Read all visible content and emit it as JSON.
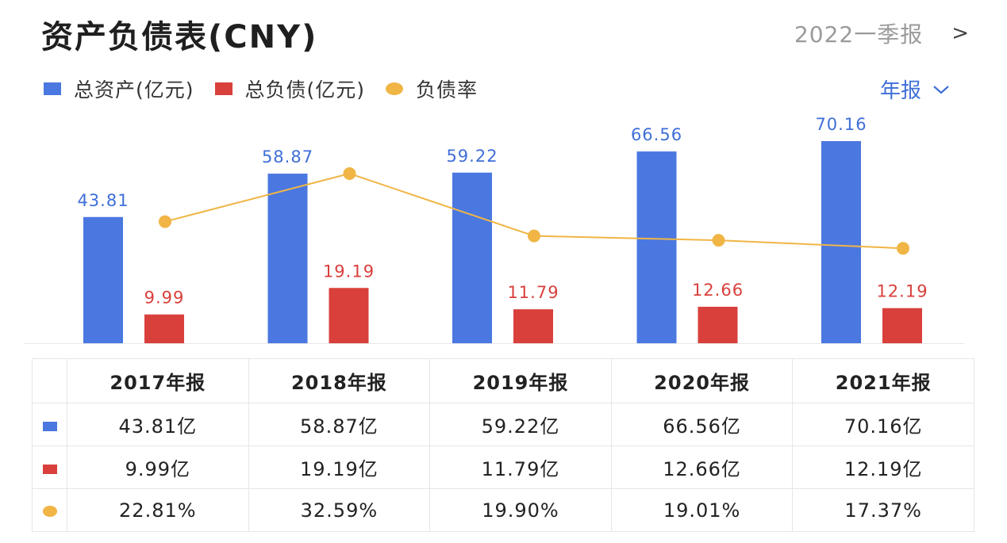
{
  "header": {
    "title": "资产负债表(CNY)",
    "period": "2022一季报",
    "chevron_icon": "chevron-right-icon"
  },
  "legend": {
    "items": [
      {
        "label": "总资产(亿元)",
        "color": "#4a78e0",
        "shape": "square"
      },
      {
        "label": "总负债(亿元)",
        "color": "#d9403c",
        "shape": "square"
      },
      {
        "label": "负债率",
        "color": "#f0b545",
        "shape": "dot"
      }
    ]
  },
  "report_selector": {
    "label": "年报",
    "icon": "chevron-down-icon"
  },
  "colors": {
    "assets": "#4a78e0",
    "liabilities": "#d9403c",
    "ratio": "#f0b545"
  },
  "chart_data": {
    "type": "bar",
    "categories": [
      "2017年报",
      "2018年报",
      "2019年报",
      "2020年报",
      "2021年报"
    ],
    "series": [
      {
        "name": "总资产(亿元)",
        "values": [
          43.81,
          58.87,
          59.22,
          66.56,
          70.16
        ],
        "labels": [
          "43.81",
          "58.87",
          "59.22",
          "66.56",
          "70.16"
        ]
      },
      {
        "name": "总负债(亿元)",
        "values": [
          9.99,
          19.19,
          11.79,
          12.66,
          12.19
        ],
        "labels": [
          "9.99",
          "19.19",
          "11.79",
          "12.66",
          "12.19"
        ]
      },
      {
        "name": "负债率",
        "type": "line",
        "values": [
          22.81,
          32.59,
          19.9,
          19.01,
          17.37
        ]
      }
    ],
    "bar_ylim": [
      0,
      70.16
    ],
    "line_ylim": [
      0,
      40
    ],
    "grid": false,
    "legend_position": "top-left"
  },
  "table": {
    "headers": [
      "2017年报",
      "2018年报",
      "2019年报",
      "2020年报",
      "2021年报"
    ],
    "rows": [
      {
        "marker": "assets",
        "cells": [
          "43.81亿",
          "58.87亿",
          "59.22亿",
          "66.56亿",
          "70.16亿"
        ]
      },
      {
        "marker": "liabilities",
        "cells": [
          "9.99亿",
          "19.19亿",
          "11.79亿",
          "12.66亿",
          "12.19亿"
        ]
      },
      {
        "marker": "ratio",
        "cells": [
          "22.81%",
          "32.59%",
          "19.90%",
          "19.01%",
          "17.37%"
        ]
      }
    ]
  }
}
